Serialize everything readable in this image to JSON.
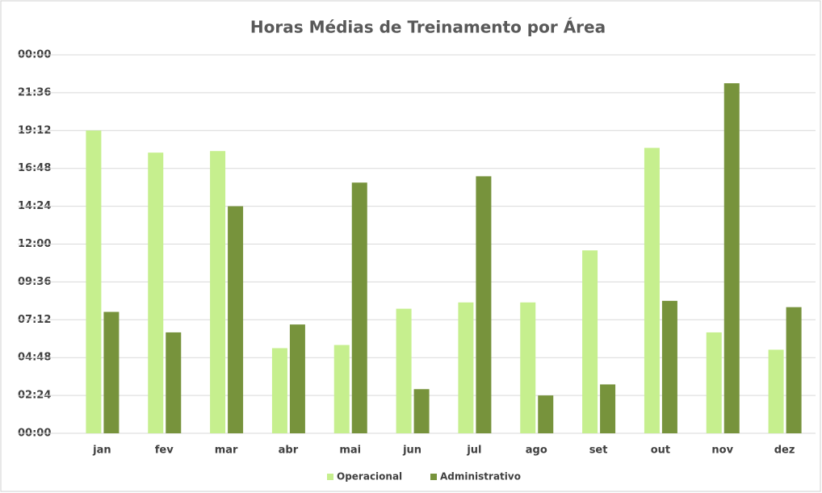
{
  "chart_data": {
    "type": "bar",
    "title": "Horas Médias de Treinamento por Área",
    "categories": [
      "jan",
      "fev",
      "mar",
      "abr",
      "mai",
      "jun",
      "jul",
      "ago",
      "set",
      "out",
      "nov",
      "dez"
    ],
    "series": [
      {
        "name": "Operacional",
        "color": "#c6ef8e",
        "values": [
          19.2,
          17.8,
          17.9,
          5.4,
          5.6,
          7.9,
          8.3,
          8.3,
          11.6,
          18.1,
          6.4,
          5.3
        ]
      },
      {
        "name": "Administrativo",
        "color": "#77933c",
        "values": [
          7.7,
          6.4,
          14.4,
          6.9,
          15.9,
          2.8,
          16.3,
          2.4,
          3.1,
          8.4,
          22.2,
          8.0
        ]
      }
    ],
    "ylim": [
      0,
      24
    ],
    "yticks": [
      {
        "value": 0,
        "label": "00:00"
      },
      {
        "value": 2.4,
        "label": "02:24"
      },
      {
        "value": 4.8,
        "label": "04:48"
      },
      {
        "value": 7.2,
        "label": "07:12"
      },
      {
        "value": 9.6,
        "label": "09:36"
      },
      {
        "value": 12,
        "label": "12:00"
      },
      {
        "value": 14.4,
        "label": "14:24"
      },
      {
        "value": 16.8,
        "label": "16:48"
      },
      {
        "value": 19.2,
        "label": "19:12"
      },
      {
        "value": 21.6,
        "label": "21:36"
      },
      {
        "value": 24,
        "label": "00:00"
      }
    ],
    "grid": true,
    "legend": "bottom"
  }
}
